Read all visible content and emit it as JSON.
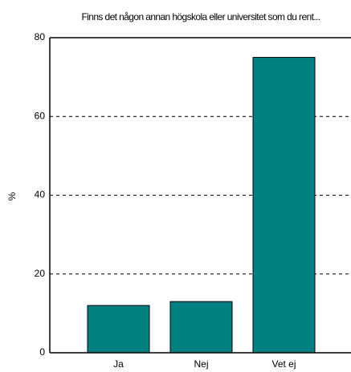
{
  "chart_data": {
    "type": "bar",
    "title": "Finns det någon annan högskola eller universitet som du rent...",
    "y_label": "%",
    "categories": [
      "Ja",
      "Nej",
      "Vet ej"
    ],
    "values": [
      12,
      13,
      75
    ],
    "color": "#008080",
    "ylim": [
      0,
      80
    ],
    "yticks": [
      0,
      20,
      40,
      60,
      80
    ],
    "grid": true
  }
}
